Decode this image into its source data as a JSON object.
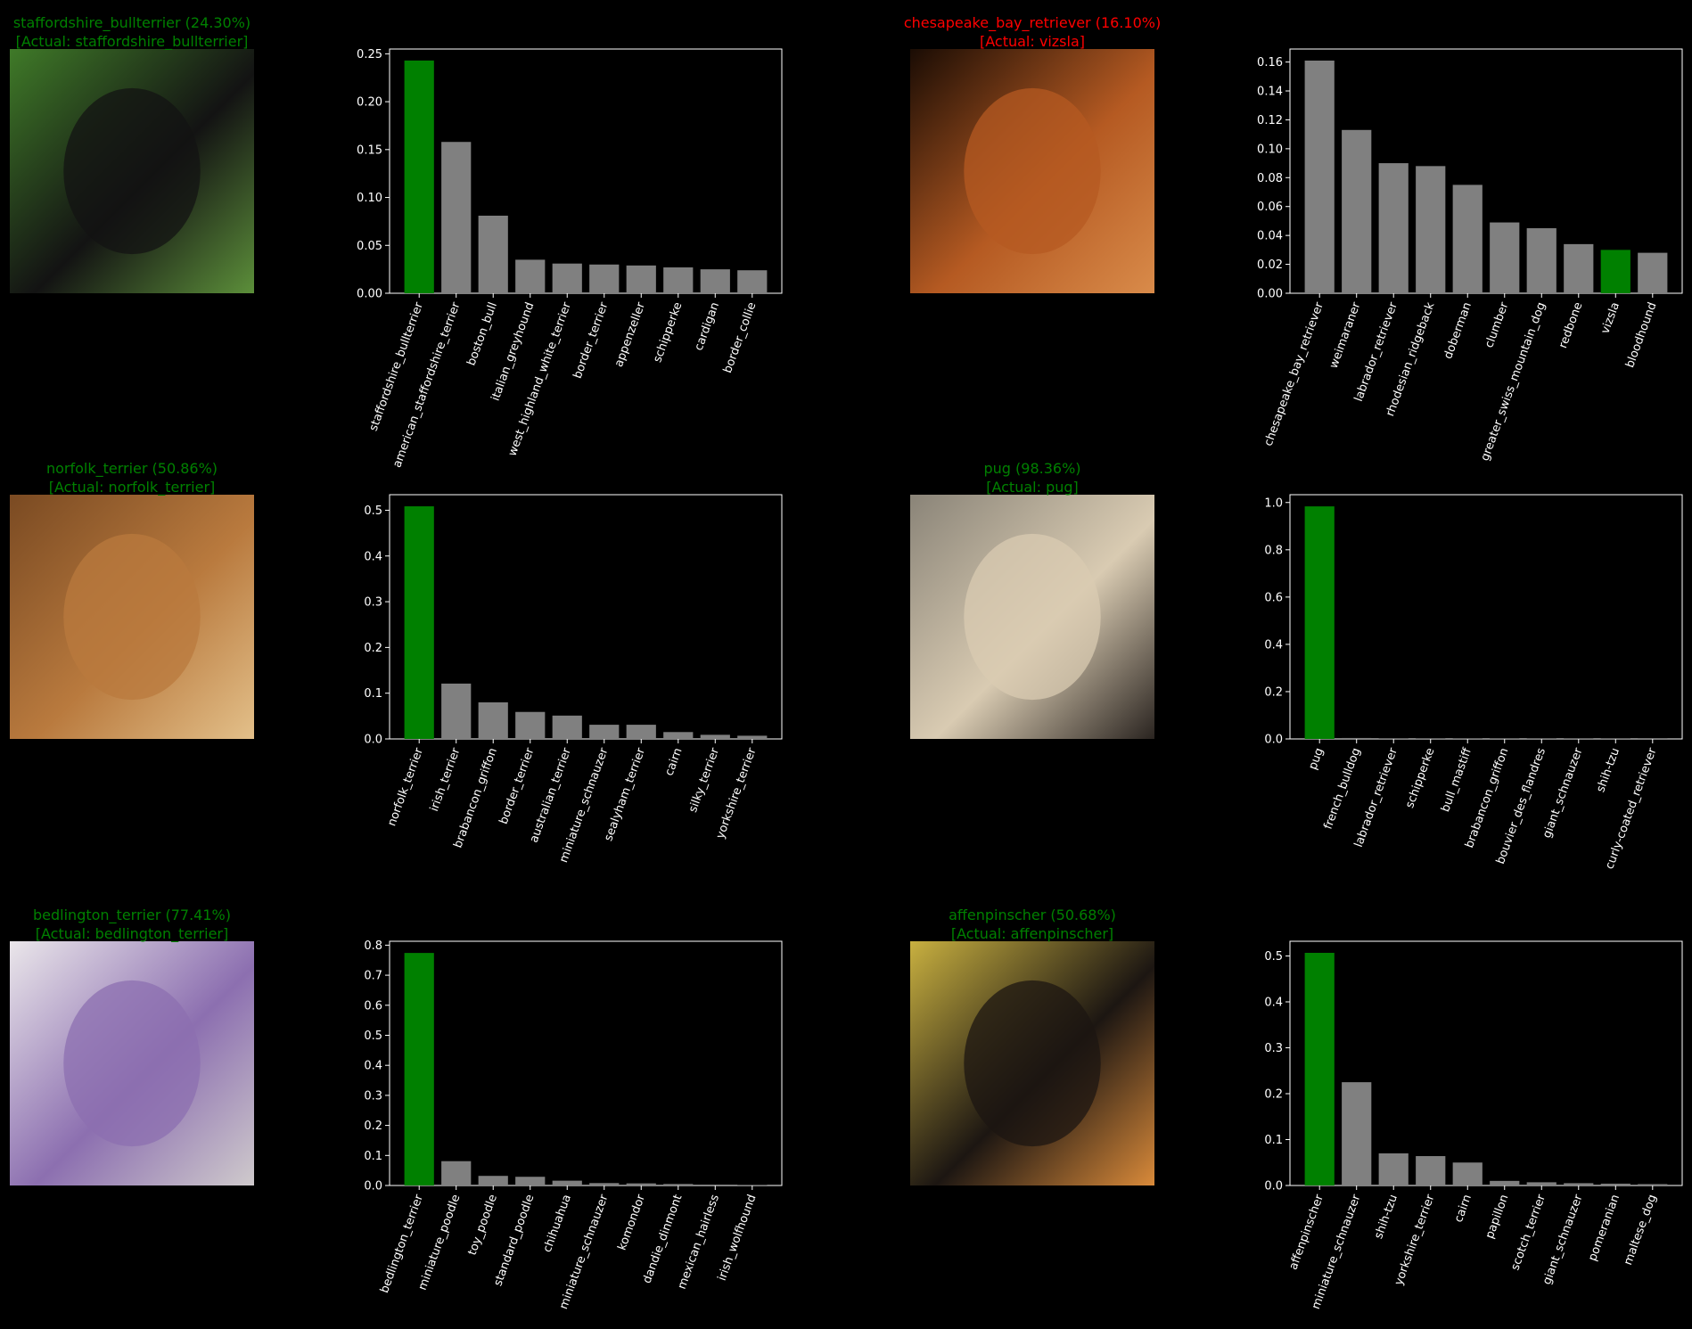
{
  "figure": {
    "background": "#000000"
  },
  "colors": {
    "correct": "#008000",
    "wrong": "#ff0000",
    "bar": "#808080",
    "axis": "#ffffff"
  },
  "chart_data": [
    {
      "type": "bar",
      "photo": {
        "title": "staffordshire_bullterrier (24.30%)",
        "subtitle": "[Actual: staffordshire_bullterrier]",
        "correct": true,
        "palette": [
          "#3f7a28",
          "#131313",
          "#5c8f3a"
        ]
      },
      "categories": [
        "staffordshire_bullterrier",
        "american_staffordshire_terrier",
        "boston_bull",
        "italian_greyhound",
        "west_highland_white_terrier",
        "border_terrier",
        "appenzeller",
        "schipperke",
        "cardigan",
        "border_collie"
      ],
      "values": [
        0.243,
        0.158,
        0.081,
        0.035,
        0.031,
        0.03,
        0.029,
        0.027,
        0.025,
        0.024
      ],
      "highlight_index": 0,
      "ylim": [
        0,
        0.255
      ],
      "yticks": [
        "0.00",
        "0.05",
        "0.10",
        "0.15",
        "0.20",
        "0.25"
      ]
    },
    {
      "type": "bar",
      "photo": {
        "title": "chesapeake_bay_retriever (16.10%)",
        "subtitle": "[Actual: vizsla]",
        "correct": false,
        "palette": [
          "#1a0c04",
          "#b55a22",
          "#d98b4a"
        ]
      },
      "categories": [
        "chesapeake_bay_retriever",
        "weimaraner",
        "labrador_retriever",
        "rhodesian_ridgeback",
        "doberman",
        "clumber",
        "greater_swiss_mountain_dog",
        "redbone",
        "vizsla",
        "bloodhound"
      ],
      "values": [
        0.161,
        0.113,
        0.09,
        0.088,
        0.075,
        0.049,
        0.045,
        0.034,
        0.03,
        0.028
      ],
      "highlight_index": 8,
      "ylim": [
        0,
        0.169
      ],
      "yticks": [
        "0.00",
        "0.02",
        "0.04",
        "0.06",
        "0.08",
        "0.10",
        "0.12",
        "0.14",
        "0.16"
      ]
    },
    {
      "type": "bar",
      "photo": {
        "title": "norfolk_terrier (50.86%)",
        "subtitle": "[Actual: norfolk_terrier]",
        "correct": true,
        "palette": [
          "#7a4a22",
          "#b97a3e",
          "#e3c08a"
        ]
      },
      "categories": [
        "norfolk_terrier",
        "irish_terrier",
        "brabancon_griffon",
        "border_terrier",
        "australian_terrier",
        "miniature_schnauzer",
        "sealyham_terrier",
        "cairn",
        "silky_terrier",
        "yorkshire_terrier"
      ],
      "values": [
        0.5086,
        0.121,
        0.08,
        0.059,
        0.051,
        0.031,
        0.031,
        0.015,
        0.009,
        0.007
      ],
      "highlight_index": 0,
      "ylim": [
        0,
        0.534
      ],
      "yticks": [
        "0.0",
        "0.1",
        "0.2",
        "0.3",
        "0.4",
        "0.5"
      ]
    },
    {
      "type": "bar",
      "photo": {
        "title": "pug (98.36%)",
        "subtitle": "[Actual: pug]",
        "correct": true,
        "palette": [
          "#8a8478",
          "#d9cbb2",
          "#2a2420"
        ]
      },
      "categories": [
        "pug",
        "french_bulldog",
        "labrador_retriever",
        "schipperke",
        "bull_mastiff",
        "brabancon_griffon",
        "bouvier_des_flandres",
        "giant_schnauzer",
        "shih-tzu",
        "curly-coated_retriever"
      ],
      "values": [
        0.9836,
        0.004,
        0.001,
        0.001,
        0.001,
        0.001,
        0.001,
        0.001,
        0.001,
        0.0005
      ],
      "highlight_index": 0,
      "ylim": [
        0,
        1.033
      ],
      "yticks": [
        "0.0",
        "0.2",
        "0.4",
        "0.6",
        "0.8",
        "1.0"
      ]
    },
    {
      "type": "bar",
      "photo": {
        "title": "bedlington_terrier (77.41%)",
        "subtitle": "[Actual: bedlington_terrier]",
        "correct": true,
        "palette": [
          "#eae6ea",
          "#8c6fb0",
          "#cfcacc"
        ]
      },
      "categories": [
        "bedlington_terrier",
        "miniature_poodle",
        "toy_poodle",
        "standard_poodle",
        "chihuahua",
        "miniature_schnauzer",
        "komondor",
        "dandie_dinmont",
        "mexican_hairless",
        "irish_wolfhound"
      ],
      "values": [
        0.7741,
        0.081,
        0.032,
        0.029,
        0.016,
        0.008,
        0.007,
        0.005,
        0.003,
        0.002
      ],
      "highlight_index": 0,
      "ylim": [
        0,
        0.813
      ],
      "yticks": [
        "0.0",
        "0.1",
        "0.2",
        "0.3",
        "0.4",
        "0.5",
        "0.6",
        "0.7",
        "0.8"
      ]
    },
    {
      "type": "bar",
      "photo": {
        "title": "affenpinscher (50.68%)",
        "subtitle": "[Actual: affenpinscher]",
        "correct": true,
        "palette": [
          "#c8b040",
          "#1c1612",
          "#d98a3a"
        ]
      },
      "categories": [
        "affenpinscher",
        "miniature_schnauzer",
        "shih-tzu",
        "yorkshire_terrier",
        "cairn",
        "papillon",
        "scotch_terrier",
        "giant_schnauzer",
        "pomeranian",
        "maltese_dog"
      ],
      "values": [
        0.5068,
        0.225,
        0.07,
        0.064,
        0.05,
        0.01,
        0.007,
        0.005,
        0.004,
        0.003
      ],
      "highlight_index": 0,
      "ylim": [
        0,
        0.532
      ],
      "yticks": [
        "0.0",
        "0.1",
        "0.2",
        "0.3",
        "0.4",
        "0.5"
      ]
    }
  ]
}
